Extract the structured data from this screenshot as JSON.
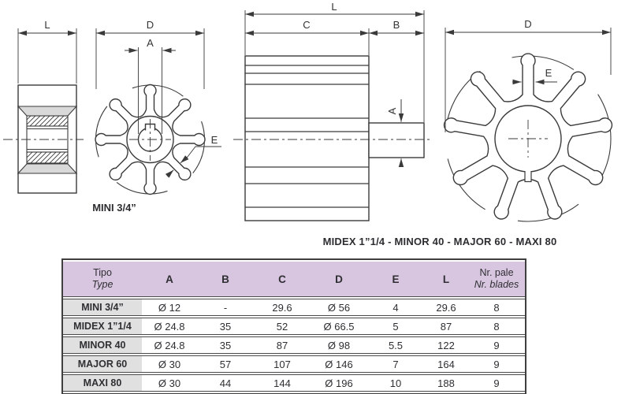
{
  "drawings": {
    "mini": {
      "label": "MINI 3/4”",
      "dims": {
        "L": "L",
        "D": "D",
        "A": "A",
        "E": "E"
      }
    },
    "large": {
      "caption": "MIDEX 1”1/4 - MINOR 40 - MAJOR 60 - MAXI 80",
      "side_dims": {
        "L": "L",
        "C": "C",
        "B": "B",
        "A": "A"
      },
      "front_dims": {
        "D": "D",
        "E": "E"
      }
    }
  },
  "table": {
    "header": {
      "tipo": "Tipo",
      "type": "Type",
      "cols": [
        "A",
        "B",
        "C",
        "D",
        "E",
        "L"
      ],
      "nr_pale": "Nr. pale",
      "nr_blades": "Nr. blades"
    },
    "rows": [
      {
        "name": "MINI 3/4”",
        "values": [
          "Ø 12",
          "-",
          "29.6",
          "Ø 56",
          "4",
          "29.6",
          "8"
        ]
      },
      {
        "name": "MIDEX 1”1/4",
        "values": [
          "Ø 24.8",
          "35",
          "52",
          "Ø 66.5",
          "5",
          "87",
          "8"
        ]
      },
      {
        "name": "MINOR 40",
        "values": [
          "Ø 24.8",
          "35",
          "87",
          "Ø 98",
          "5.5",
          "122",
          "9"
        ]
      },
      {
        "name": "MAJOR 60",
        "values": [
          "Ø 30",
          "57",
          "107",
          "Ø 146",
          "7",
          "164",
          "9"
        ]
      },
      {
        "name": "MAXI 80",
        "values": [
          "Ø 30",
          "44",
          "144",
          "Ø 196",
          "10",
          "188",
          "9"
        ]
      }
    ]
  },
  "colors": {
    "header_bg": "#d8c5e0",
    "label_col_bg": "#e0e0e0",
    "line": "#3a3a3a",
    "table_border": "#3f3f3f",
    "section_gray": "#d9d9d9"
  }
}
